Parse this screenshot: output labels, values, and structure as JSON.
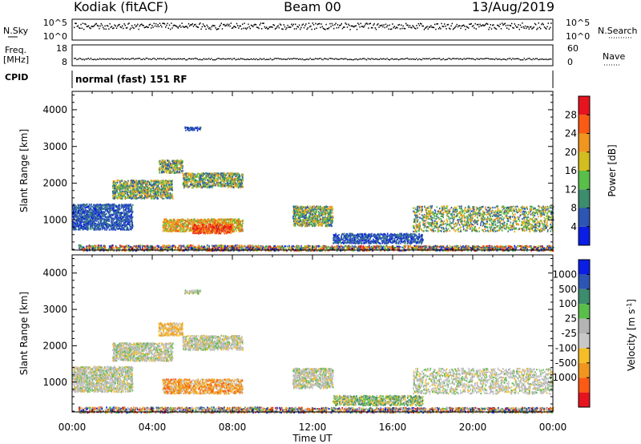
{
  "header": {
    "station": "Kodiak (fitACF)",
    "beam": "Beam 00",
    "date": "13/Aug/2019"
  },
  "noise_panel": {
    "left_label": "N.Sky",
    "left_ticks": [
      "10^5",
      "10^0"
    ],
    "right_label": "N.Search",
    "right_ticks": [
      "10^5",
      "10^0"
    ]
  },
  "freq_panel": {
    "left_label_1": "Freq.",
    "left_label_2": "[MHz]",
    "left_ticks": [
      "18",
      "8"
    ],
    "right_label": "Nave",
    "right_ticks": [
      "60",
      "0"
    ]
  },
  "cpid_panel": {
    "label": "CPID",
    "text": "normal (fast) 151 RF"
  },
  "x_axis": {
    "title": "Time UT",
    "ticks": [
      "00:00",
      "04:00",
      "08:00",
      "12:00",
      "16:00",
      "20:00",
      "00:00"
    ]
  },
  "chart_data": [
    {
      "type": "heatmap",
      "title": "",
      "xlabel": "Time UT",
      "ylabel": "Slant Range [km]",
      "xlim": [
        "00:00",
        "24:00"
      ],
      "ylim": [
        180,
        4500
      ],
      "yticks": [
        "1000",
        "2000",
        "3000",
        "4000"
      ],
      "colorbar": {
        "label": "Power [dB]",
        "ticks": [
          "4",
          "8",
          "12",
          "16",
          "20",
          "24",
          "28"
        ],
        "range": [
          0,
          30
        ],
        "colors": [
          "#0a1ee6",
          "#2d55b4",
          "#3c8c6e",
          "#5abe4b",
          "#d2be1e",
          "#f0961e",
          "#fa5a14",
          "#e6141e"
        ]
      },
      "scatter_regions": [
        {
          "t": [
            0.3,
            9.5
          ],
          "range": [
            180,
            330
          ],
          "level": "mixed"
        },
        {
          "t": [
            4.5,
            8.5
          ],
          "range": [
            700,
            1050
          ],
          "level": "high"
        },
        {
          "t": [
            6.0,
            8.0
          ],
          "range": [
            650,
            900
          ],
          "level": "max"
        },
        {
          "t": [
            0.0,
            3.0
          ],
          "range": [
            750,
            1450
          ],
          "level": "low"
        },
        {
          "t": [
            2.0,
            5.0
          ],
          "range": [
            1600,
            2100
          ],
          "level": "medium"
        },
        {
          "t": [
            5.5,
            8.5
          ],
          "range": [
            1900,
            2300
          ],
          "level": "medium"
        },
        {
          "t": [
            4.3,
            5.5
          ],
          "range": [
            2300,
            2650
          ],
          "level": "medium"
        },
        {
          "t": [
            5.6,
            6.4
          ],
          "range": [
            3450,
            3550
          ],
          "level": "low"
        },
        {
          "t": [
            11.0,
            13.0
          ],
          "range": [
            850,
            1400
          ],
          "level": "medium"
        },
        {
          "t": [
            13.0,
            17.5
          ],
          "range": [
            380,
            650
          ],
          "level": "low"
        },
        {
          "t": [
            17.0,
            24.0
          ],
          "range": [
            700,
            1400
          ],
          "level": "medium"
        },
        {
          "t": [
            9.5,
            24.0
          ],
          "range": [
            180,
            320
          ],
          "level": "mixed"
        }
      ]
    },
    {
      "type": "heatmap",
      "title": "",
      "xlabel": "Time UT",
      "ylabel": "Slant Range [km]",
      "xlim": [
        "00:00",
        "24:00"
      ],
      "ylim": [
        180,
        4500
      ],
      "yticks": [
        "1000",
        "2000",
        "3000",
        "4000"
      ],
      "colorbar": {
        "label": "Velocity [m s^-1]",
        "ticks": [
          "1000",
          "500",
          "100",
          "25",
          "-25",
          "-100",
          "-500",
          "-1000"
        ],
        "range": [
          -1250,
          1250
        ],
        "colors": [
          "#e6141e",
          "#fa5a14",
          "#f0961e",
          "#f5be28",
          "#c8c8c8",
          "#b4b4b4",
          "#5abe4b",
          "#3c8c6e",
          "#2d55b4",
          "#0a1ee6"
        ]
      },
      "scatter_regions": [
        {
          "t": [
            0.3,
            9.5
          ],
          "range": [
            180,
            330
          ],
          "level": "mixed"
        },
        {
          "t": [
            4.5,
            8.5
          ],
          "range": [
            700,
            1100
          ],
          "level": "negative"
        },
        {
          "t": [
            0.0,
            3.0
          ],
          "range": [
            750,
            1450
          ],
          "level": "near-zero"
        },
        {
          "t": [
            2.0,
            5.0
          ],
          "range": [
            1600,
            2100
          ],
          "level": "near-zero"
        },
        {
          "t": [
            5.5,
            8.5
          ],
          "range": [
            1900,
            2300
          ],
          "level": "near-zero"
        },
        {
          "t": [
            4.3,
            5.5
          ],
          "range": [
            2300,
            2650
          ],
          "level": "slight-negative"
        },
        {
          "t": [
            5.6,
            6.4
          ],
          "range": [
            3450,
            3550
          ],
          "level": "near-zero"
        },
        {
          "t": [
            11.0,
            13.0
          ],
          "range": [
            850,
            1400
          ],
          "level": "near-zero"
        },
        {
          "t": [
            13.0,
            17.5
          ],
          "range": [
            380,
            650
          ],
          "level": "positive"
        },
        {
          "t": [
            17.0,
            24.0
          ],
          "range": [
            700,
            1400
          ],
          "level": "near-zero"
        },
        {
          "t": [
            9.5,
            24.0
          ],
          "range": [
            180,
            320
          ],
          "level": "mixed"
        }
      ]
    }
  ]
}
